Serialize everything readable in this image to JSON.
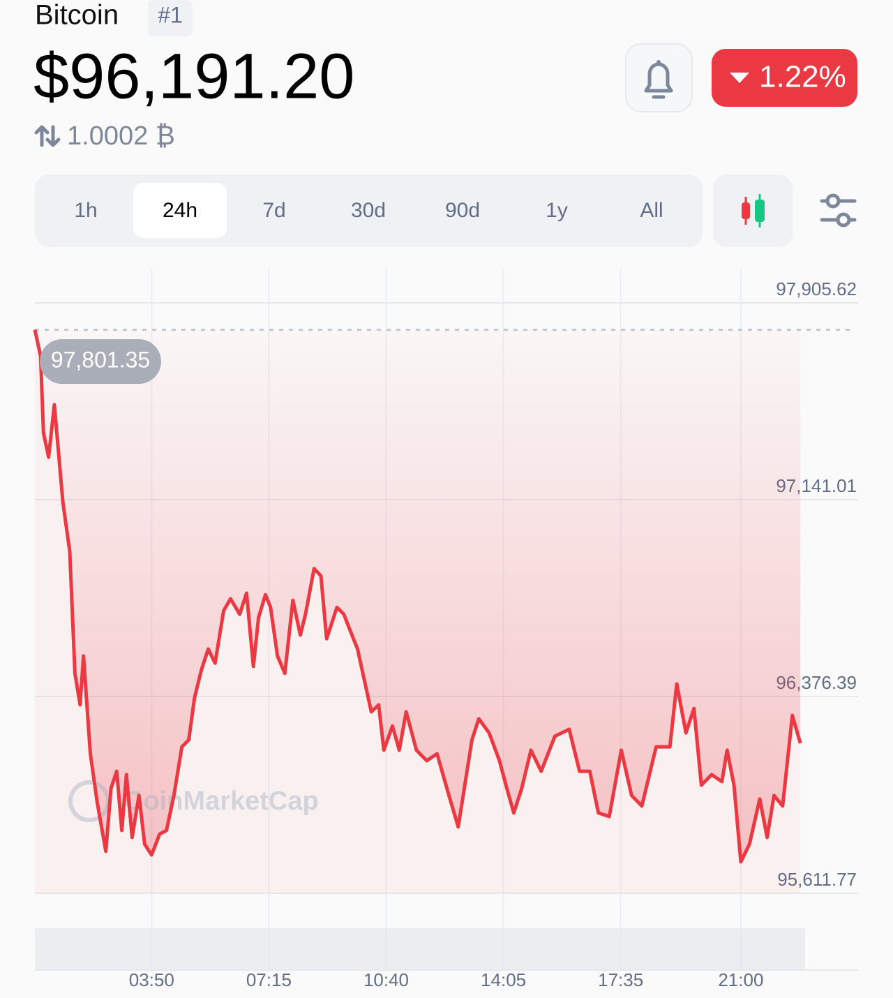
{
  "header": {
    "name": "Bitcoin",
    "rank": "#1",
    "price": "$96,191.20",
    "change": "1.22%",
    "conversion": "1.0002 ₿"
  },
  "tabs": [
    "1h",
    "24h",
    "7d",
    "30d",
    "90d",
    "1y",
    "All"
  ],
  "active_tab": 1,
  "chart_data": {
    "type": "line",
    "color": "#ea3943",
    "watermark": "CoinMarketCap",
    "x": [
      26,
      36,
      41,
      50,
      60,
      75,
      87,
      96,
      105,
      111,
      123,
      135,
      150,
      159,
      169,
      178,
      186,
      196,
      208,
      218,
      230,
      244,
      256,
      269,
      283,
      295,
      305,
      317,
      329,
      341,
      356,
      368,
      384,
      396,
      408,
      417,
      429,
      438,
      450,
      463,
      477,
      490,
      499,
      514,
      526,
      536,
      554,
      566,
      578,
      590,
      602,
      614,
      627,
      636,
      651,
      663,
      675,
      693,
      711,
      729,
      748,
      766,
      790,
      802,
      820,
      838,
      851,
      863,
      877,
      893,
      911,
      935,
      960,
      978,
      996,
      1011,
      1030,
      1051,
      1069,
      1087,
      1112,
      1136,
      1148,
      1164,
      1178,
      1191,
      1209,
      1227,
      1236,
      1248,
      1260,
      1275,
      1293,
      1306,
      1318,
      1333,
      1350,
      1364
    ],
    "values": [
      97801.35,
      97699,
      97401,
      97306,
      97510,
      97130,
      96940,
      96466,
      96344,
      96534,
      96154,
      95964,
      95775,
      96019,
      96086,
      95856,
      96073,
      95829,
      95992,
      95802,
      95761,
      95842,
      95856,
      95992,
      96181,
      96208,
      96371,
      96479,
      96561,
      96506,
      96710,
      96756,
      96696,
      96778,
      96493,
      96683,
      96772,
      96723,
      96534,
      96466,
      96750,
      96615,
      96696,
      96873,
      96845,
      96601,
      96723,
      96696,
      96628,
      96561,
      96439,
      96317,
      96344,
      96168,
      96262,
      96168,
      96317,
      96168,
      96127,
      96154,
      96005,
      95870,
      96208,
      96290,
      96235,
      96127,
      96019,
      95924,
      96019,
      96168,
      96086,
      96222,
      96249,
      96086,
      96086,
      95924,
      95910,
      96168,
      95992,
      95951,
      96181,
      96181,
      96425,
      96235,
      96330,
      96032,
      96073,
      96046,
      96168,
      96032,
      95734,
      95802,
      95978,
      95829,
      95992,
      95951,
      96303,
      96195
    ],
    "reference_line": {
      "value": 97801.35,
      "label": "97,801.35"
    },
    "xlim": [
      26,
      1465
    ],
    "xticks": [
      {
        "value": 230,
        "label": "03:50"
      },
      {
        "value": 435,
        "label": "07:15"
      },
      {
        "value": 640,
        "label": "10:40"
      },
      {
        "value": 845,
        "label": "14:05"
      },
      {
        "value": 1050,
        "label": "17:35"
      },
      {
        "value": 1260,
        "label": "21:00"
      }
    ],
    "ylim": [
      95611.77,
      97905.62
    ],
    "yticks": [
      {
        "value": 97905.62,
        "label": "97,905.62"
      },
      {
        "value": 97141.01,
        "label": "97,141.01"
      },
      {
        "value": 96376.39,
        "label": "96,376.39"
      },
      {
        "value": 95611.77,
        "label": "95,611.77"
      }
    ],
    "grid": true
  }
}
